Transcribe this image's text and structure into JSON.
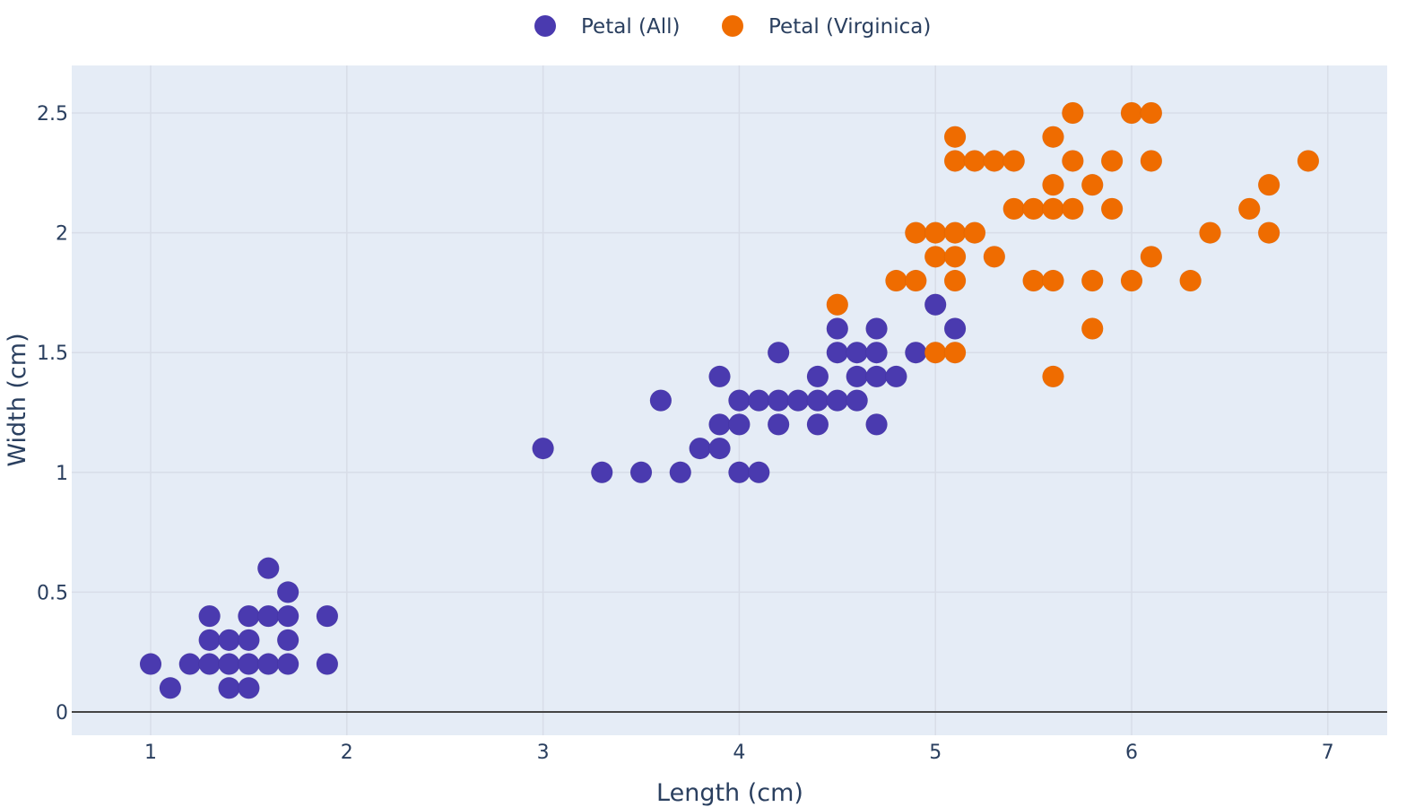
{
  "chart_data": {
    "type": "scatter",
    "xlabel": "Length (cm)",
    "ylabel": "Width (cm)",
    "xlim": [
      0.6,
      7.3
    ],
    "ylim": [
      -0.1,
      2.7
    ],
    "x_ticks": [
      1,
      2,
      3,
      4,
      5,
      6,
      7
    ],
    "y_ticks": [
      0,
      0.5,
      1,
      1.5,
      2,
      2.5
    ],
    "x_tick_labels": [
      "1",
      "2",
      "3",
      "4",
      "5",
      "6",
      "7"
    ],
    "y_tick_labels": [
      "0",
      "0.5",
      "1",
      "1.5",
      "2",
      "2.5"
    ],
    "grid": true,
    "legend_position": "top-center",
    "plot_background": "#e5ecf6",
    "series": [
      {
        "name": "Petal (All)",
        "color": "#4a3aaf",
        "points": [
          [
            1.0,
            0.2
          ],
          [
            1.1,
            0.1
          ],
          [
            1.2,
            0.2
          ],
          [
            1.3,
            0.2
          ],
          [
            1.3,
            0.3
          ],
          [
            1.3,
            0.4
          ],
          [
            1.4,
            0.1
          ],
          [
            1.4,
            0.2
          ],
          [
            1.4,
            0.3
          ],
          [
            1.5,
            0.1
          ],
          [
            1.5,
            0.2
          ],
          [
            1.5,
            0.3
          ],
          [
            1.5,
            0.4
          ],
          [
            1.6,
            0.2
          ],
          [
            1.6,
            0.4
          ],
          [
            1.6,
            0.6
          ],
          [
            1.7,
            0.2
          ],
          [
            1.7,
            0.3
          ],
          [
            1.7,
            0.4
          ],
          [
            1.7,
            0.5
          ],
          [
            1.9,
            0.2
          ],
          [
            1.9,
            0.4
          ],
          [
            3.0,
            1.1
          ],
          [
            3.3,
            1.0
          ],
          [
            3.5,
            1.0
          ],
          [
            3.6,
            1.3
          ],
          [
            3.7,
            1.0
          ],
          [
            3.8,
            1.1
          ],
          [
            3.9,
            1.1
          ],
          [
            3.9,
            1.2
          ],
          [
            3.9,
            1.4
          ],
          [
            4.0,
            1.0
          ],
          [
            4.0,
            1.2
          ],
          [
            4.0,
            1.3
          ],
          [
            4.1,
            1.0
          ],
          [
            4.1,
            1.3
          ],
          [
            4.2,
            1.2
          ],
          [
            4.2,
            1.3
          ],
          [
            4.2,
            1.5
          ],
          [
            4.3,
            1.3
          ],
          [
            4.4,
            1.2
          ],
          [
            4.4,
            1.3
          ],
          [
            4.4,
            1.4
          ],
          [
            4.5,
            1.3
          ],
          [
            4.5,
            1.5
          ],
          [
            4.5,
            1.6
          ],
          [
            4.6,
            1.3
          ],
          [
            4.6,
            1.4
          ],
          [
            4.6,
            1.5
          ],
          [
            4.7,
            1.2
          ],
          [
            4.7,
            1.4
          ],
          [
            4.7,
            1.5
          ],
          [
            4.7,
            1.6
          ],
          [
            4.8,
            1.4
          ],
          [
            4.9,
            1.5
          ],
          [
            5.0,
            1.7
          ],
          [
            5.1,
            1.6
          ]
        ]
      },
      {
        "name": "Petal (Virginica)",
        "color": "#ef6c00",
        "points": [
          [
            4.5,
            1.7
          ],
          [
            4.8,
            1.8
          ],
          [
            4.9,
            1.8
          ],
          [
            4.9,
            2.0
          ],
          [
            5.0,
            1.5
          ],
          [
            5.0,
            1.9
          ],
          [
            5.0,
            2.0
          ],
          [
            5.1,
            1.5
          ],
          [
            5.1,
            1.8
          ],
          [
            5.1,
            1.9
          ],
          [
            5.1,
            2.0
          ],
          [
            5.1,
            2.3
          ],
          [
            5.1,
            2.4
          ],
          [
            5.2,
            2.0
          ],
          [
            5.2,
            2.3
          ],
          [
            5.3,
            1.9
          ],
          [
            5.3,
            2.3
          ],
          [
            5.4,
            2.1
          ],
          [
            5.4,
            2.3
          ],
          [
            5.5,
            1.8
          ],
          [
            5.5,
            2.1
          ],
          [
            5.6,
            1.4
          ],
          [
            5.6,
            1.8
          ],
          [
            5.6,
            2.1
          ],
          [
            5.6,
            2.2
          ],
          [
            5.6,
            2.4
          ],
          [
            5.7,
            2.1
          ],
          [
            5.7,
            2.3
          ],
          [
            5.7,
            2.5
          ],
          [
            5.8,
            1.6
          ],
          [
            5.8,
            1.8
          ],
          [
            5.8,
            2.2
          ],
          [
            5.9,
            2.1
          ],
          [
            5.9,
            2.3
          ],
          [
            6.0,
            1.8
          ],
          [
            6.0,
            2.5
          ],
          [
            6.1,
            1.9
          ],
          [
            6.1,
            2.3
          ],
          [
            6.1,
            2.5
          ],
          [
            6.3,
            1.8
          ],
          [
            6.4,
            2.0
          ],
          [
            6.6,
            2.1
          ],
          [
            6.7,
            2.0
          ],
          [
            6.7,
            2.2
          ],
          [
            6.9,
            2.3
          ]
        ]
      }
    ]
  }
}
